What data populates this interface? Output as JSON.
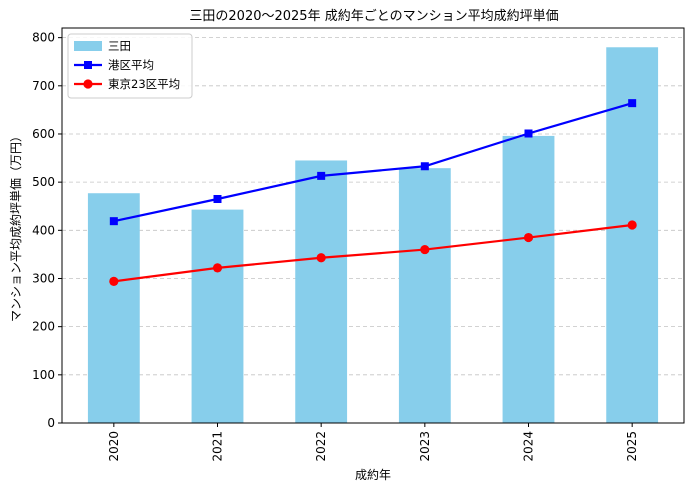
{
  "chart_data": {
    "type": "bar",
    "title": "三田の2020〜2025年 成約年ごとのマンション平均成約坪単価",
    "xlabel": "成約年",
    "ylabel": "マンション平均成約坪単価（万円）",
    "categories": [
      "2020",
      "2021",
      "2022",
      "2023",
      "2024",
      "2025"
    ],
    "ylim": [
      0,
      820
    ],
    "yticks": [
      0,
      100,
      200,
      300,
      400,
      500,
      600,
      700,
      800
    ],
    "grid": "y-dashed",
    "legend_position": "top-left",
    "series": [
      {
        "name": "三田",
        "kind": "bar",
        "color": "#87CEEB",
        "values": [
          477,
          443,
          545,
          529,
          596,
          780
        ]
      },
      {
        "name": "港区平均",
        "kind": "line",
        "marker": "square",
        "color": "#0000FF",
        "values": [
          419,
          465,
          513,
          533,
          601,
          664
        ]
      },
      {
        "name": "東京23区平均",
        "kind": "line",
        "marker": "circle",
        "color": "#FF0000",
        "values": [
          294,
          322,
          343,
          360,
          385,
          411
        ]
      }
    ]
  }
}
